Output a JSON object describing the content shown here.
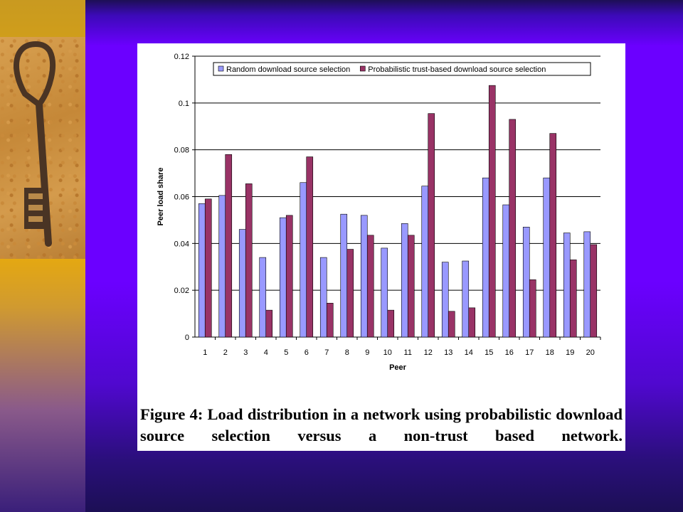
{
  "chart_data": {
    "type": "bar",
    "title": "",
    "xlabel": "Peer",
    "ylabel": "Peer load share",
    "ylim": [
      0,
      0.12
    ],
    "yticks": [
      "0",
      "0.02",
      "0.04",
      "0.06",
      "0.08",
      "0.1",
      "0.12"
    ],
    "grid": true,
    "legend_position": "top",
    "categories": [
      "1",
      "2",
      "3",
      "4",
      "5",
      "6",
      "7",
      "8",
      "9",
      "10",
      "11",
      "12",
      "13",
      "14",
      "15",
      "16",
      "17",
      "18",
      "19",
      "20"
    ],
    "series": [
      {
        "name": "Random download source selection",
        "color": "#9999ff",
        "values": [
          0.057,
          0.0605,
          0.046,
          0.034,
          0.051,
          0.066,
          0.034,
          0.0525,
          0.052,
          0.038,
          0.0485,
          0.0645,
          0.032,
          0.0325,
          0.068,
          0.0565,
          0.047,
          0.068,
          0.0445,
          0.045
        ]
      },
      {
        "name": "Probabilistic trust-based download source selection",
        "color": "#993366",
        "values": [
          0.059,
          0.078,
          0.0655,
          0.0115,
          0.052,
          0.077,
          0.0145,
          0.0375,
          0.0435,
          0.0115,
          0.0435,
          0.0955,
          0.011,
          0.0125,
          0.1075,
          0.093,
          0.0245,
          0.087,
          0.033,
          0.0395
        ]
      }
    ]
  },
  "caption": "Figure 4:  Load distribution in a network using probabilistic download source selection versus a non-trust based network."
}
